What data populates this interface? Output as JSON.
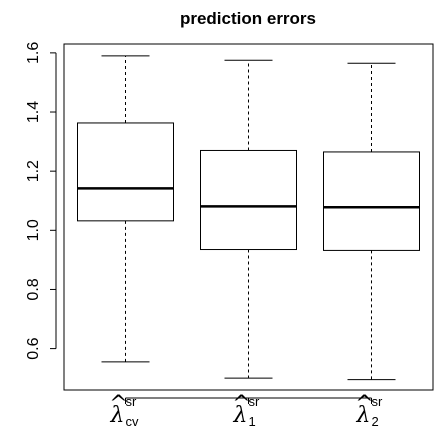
{
  "chart_data": {
    "type": "boxplot",
    "title": "prediction errors",
    "xlabel": "",
    "ylabel": "",
    "ylim": [
      0.46,
      1.63
    ],
    "yticks": [
      0.6,
      0.8,
      1.0,
      1.2,
      1.4,
      1.6
    ],
    "ytick_labels": [
      "0.6",
      "0.8",
      "1.0",
      "1.2",
      "1.4",
      "1.6"
    ],
    "grid": false,
    "categories": [
      {
        "symbol": "λ",
        "hat": "^",
        "sup": "sr",
        "sub": "cv"
      },
      {
        "symbol": "λ",
        "hat": "^",
        "sup": "sr",
        "sub": "1"
      },
      {
        "symbol": "λ",
        "hat": "^",
        "sup": "sr",
        "sub": "2"
      }
    ],
    "boxes": [
      {
        "whisker_low": 0.555,
        "q1": 1.032,
        "median": 1.142,
        "q3": 1.363,
        "whisker_high": 1.59
      },
      {
        "whisker_low": 0.5,
        "q1": 0.935,
        "median": 1.081,
        "q3": 1.27,
        "whisker_high": 1.575
      },
      {
        "whisker_low": 0.495,
        "q1": 0.932,
        "median": 1.078,
        "q3": 1.265,
        "whisker_high": 1.565
      }
    ]
  }
}
